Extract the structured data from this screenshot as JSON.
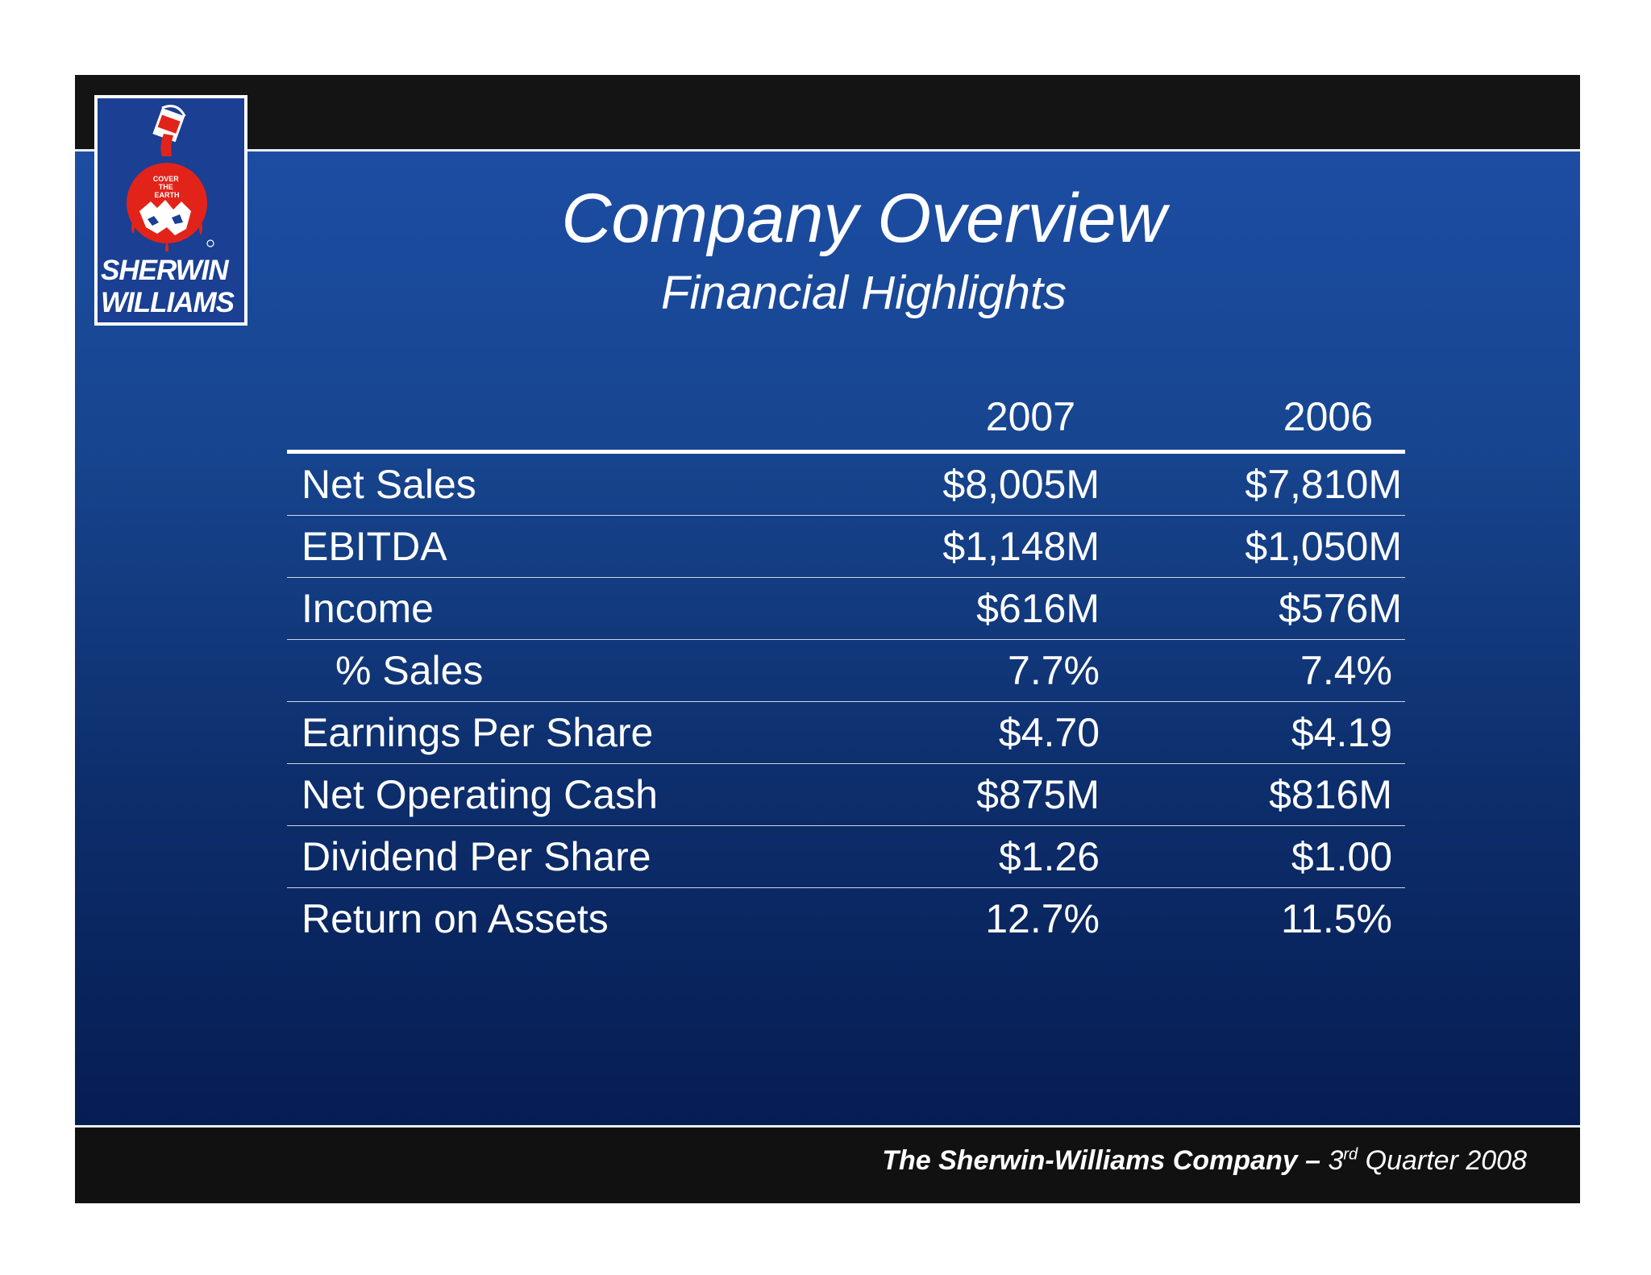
{
  "logo": {
    "badge_text": "COVER THE EARTH",
    "brand_line1": "SHERWIN",
    "brand_line2": "WILLIAMS",
    "icon": "paint-can-globe-icon"
  },
  "title": "Company Overview",
  "subtitle": "Financial Highlights",
  "table": {
    "columns": [
      "2007",
      "2006"
    ],
    "rows": [
      {
        "label": "Net Sales",
        "v2007": "$8,005M",
        "v2006": "$7,810M"
      },
      {
        "label": "EBITDA",
        "v2007": "$1,148M",
        "v2006": "$1,050M"
      },
      {
        "label": "Income",
        "v2007": "$616M",
        "v2006": "$576M"
      },
      {
        "label": "% Sales",
        "v2007": "7.7%",
        "v2006": "7.4%"
      },
      {
        "label": "Earnings Per Share",
        "v2007": "$4.70",
        "v2006": "$4.19"
      },
      {
        "label": "Net Operating Cash",
        "v2007": "$875M",
        "v2006": "$816M"
      },
      {
        "label": "Dividend Per Share",
        "v2007": "$1.26",
        "v2006": "$1.00"
      },
      {
        "label": "Return on Assets",
        "v2007": "12.7%",
        "v2006": "11.5%"
      }
    ]
  },
  "footer": {
    "company": "The Sherwin-Williams Company –",
    "quarter_num": "3",
    "quarter_sup": "rd",
    "quarter_rest": "Quarter 2008"
  },
  "colors": {
    "panel_top": "#1c4da3",
    "panel_bottom": "#061d52",
    "band": "#111111",
    "text": "#ffffff",
    "logo_red": "#e2231a"
  }
}
